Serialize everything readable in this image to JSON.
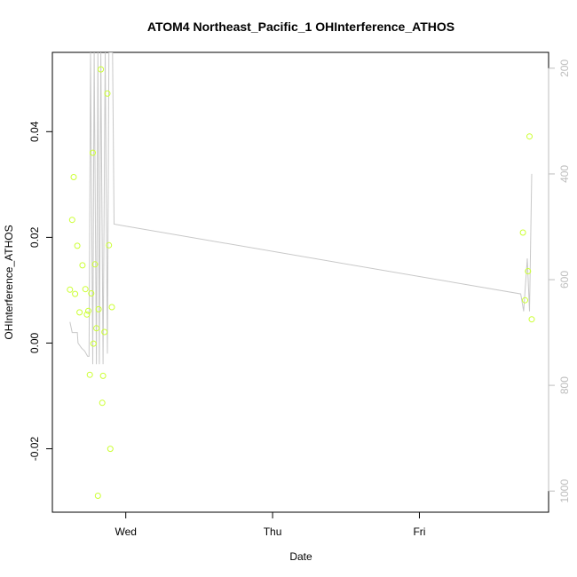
{
  "chart_data": {
    "type": "scatter",
    "title": "ATOM4 Northeast_Pacific_1 OHInterference_ATHOS",
    "xlabel": "Date",
    "ylabel": "OHInterference_ATHOS",
    "x_ticks": [
      {
        "label": "Wed",
        "day": 1.0
      },
      {
        "label": "Thu",
        "day": 2.0
      },
      {
        "label": "Fri",
        "day": 3.0
      }
    ],
    "x_range_days": [
      0.5,
      3.88
    ],
    "y_ticks": [
      -0.02,
      0.0,
      0.02,
      0.04
    ],
    "y_tick_labels": [
      "-0.02",
      "0.00",
      "0.02",
      "0.04"
    ],
    "ylim": [
      -0.032,
      0.055
    ],
    "secondary_axis": {
      "ticks": [
        200,
        400,
        600,
        800,
        1000
      ],
      "tick_labels": [
        "200",
        "400",
        "600",
        "800",
        "1000"
      ],
      "ylim": [
        1040,
        170
      ],
      "color": "#bdbdbd"
    },
    "colors": {
      "points": "#ccff33",
      "line": "#c8c8c8",
      "right_axis": "#bdbdbd"
    },
    "grid": false,
    "legend": "none",
    "series": [
      {
        "kind": "points",
        "axis": "left",
        "points": [
          [
            0.62,
            0.0101
          ],
          [
            0.635,
            0.0233
          ],
          [
            0.645,
            0.0314
          ],
          [
            0.655,
            0.0093
          ],
          [
            0.67,
            0.0184
          ],
          [
            0.685,
            0.0058
          ],
          [
            0.705,
            0.0147
          ],
          [
            0.725,
            0.0102
          ],
          [
            0.735,
            0.0054
          ],
          [
            0.745,
            0.0061
          ],
          [
            0.755,
            -0.006
          ],
          [
            0.765,
            0.0094
          ],
          [
            0.775,
            0.036
          ],
          [
            0.78,
            -0.0001
          ],
          [
            0.79,
            0.0149
          ],
          [
            0.8,
            0.0028
          ],
          [
            0.81,
            -0.0289
          ],
          [
            0.815,
            0.0064
          ],
          [
            0.83,
            0.0518
          ],
          [
            0.84,
            -0.0113
          ],
          [
            0.845,
            -0.0062
          ],
          [
            0.855,
            0.0021
          ],
          [
            0.875,
            0.0472
          ],
          [
            0.885,
            0.0185
          ],
          [
            0.895,
            -0.02
          ],
          [
            0.905,
            0.0068
          ],
          [
            3.705,
            0.0209
          ],
          [
            3.72,
            0.0081
          ],
          [
            3.74,
            0.0136
          ],
          [
            3.75,
            0.0391
          ],
          [
            3.765,
            0.0045
          ]
        ]
      },
      {
        "kind": "line",
        "axis": "right",
        "points": [
          [
            0.62,
            680
          ],
          [
            0.635,
            700
          ],
          [
            0.65,
            700
          ],
          [
            0.67,
            700
          ],
          [
            0.675,
            720
          ],
          [
            0.7,
            730
          ],
          [
            0.72,
            735
          ],
          [
            0.74,
            745
          ],
          [
            0.75,
            745
          ],
          [
            0.76,
            170
          ],
          [
            0.775,
            760
          ],
          [
            0.785,
            170
          ],
          [
            0.8,
            760
          ],
          [
            0.81,
            170
          ],
          [
            0.82,
            760
          ],
          [
            0.83,
            170
          ],
          [
            0.845,
            760
          ],
          [
            0.86,
            170
          ],
          [
            0.875,
            740
          ],
          [
            0.885,
            170
          ],
          [
            0.91,
            170
          ],
          [
            0.92,
            495
          ],
          [
            3.69,
            627
          ],
          [
            3.71,
            660
          ],
          [
            3.735,
            560
          ],
          [
            3.75,
            660
          ],
          [
            3.765,
            400
          ]
        ]
      }
    ]
  }
}
